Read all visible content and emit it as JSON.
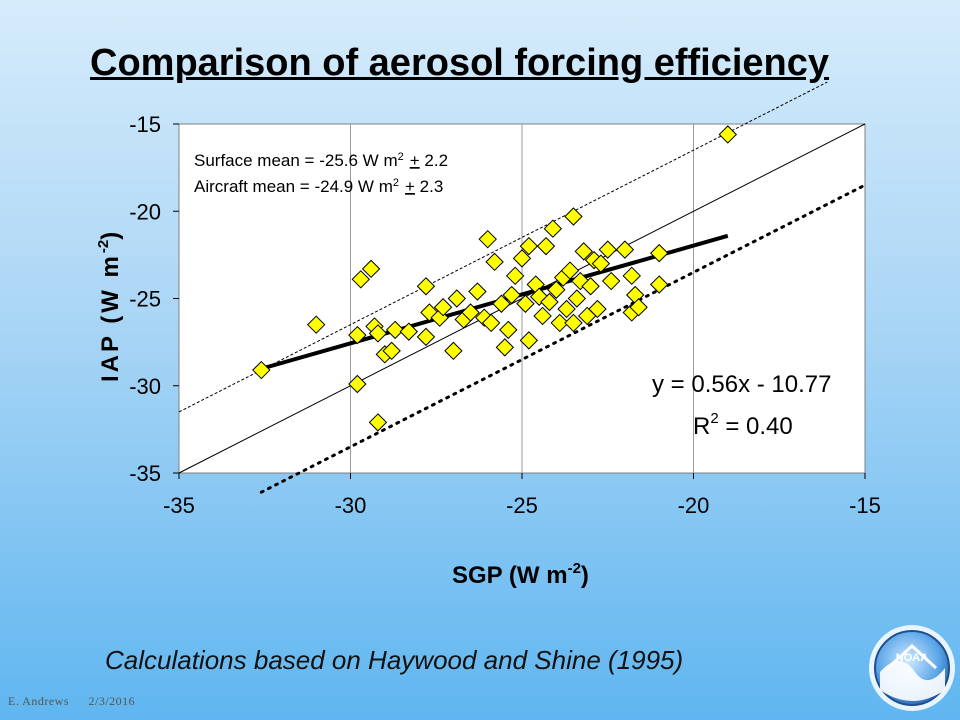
{
  "slide": {
    "title": "Comparison of aerosol forcing efficiency",
    "caption": "Calculations based on Haywood and Shine (1995)",
    "footer_author": "E. Andrews",
    "footer_date": "2/3/2016",
    "logo_text": "NOAA"
  },
  "chart_data": {
    "type": "scatter",
    "xlabel": "SGP (W m",
    "xlabel_sup": "-2",
    "xlabel_end": ")",
    "ylabel": "IAP (W m",
    "ylabel_sup": "-2",
    "ylabel_end": ")",
    "xlim": [
      -35,
      -15
    ],
    "ylim": [
      -35,
      -15
    ],
    "xticks": [
      -35,
      -30,
      -25,
      -20,
      -15
    ],
    "yticks": [
      -35,
      -30,
      -25,
      -20,
      -15
    ],
    "grid": "vertical",
    "marker": "diamond",
    "marker_color": "#ffff00",
    "annotations": {
      "surface_mean": {
        "pre": "Surface mean = -25.6 W m",
        "sup": "2",
        "pm": "+",
        "post": " 2.2"
      },
      "aircraft_mean": {
        "pre": "Aircraft mean = -24.9 W m",
        "sup": "2",
        "pm": "+",
        "post": " 2.3"
      },
      "equation": "y = 0.56x - 10.77",
      "r2_label": "R",
      "r2_sup": "2",
      "r2_value": " = 0.40"
    },
    "fit_line": {
      "slope": 0.56,
      "intercept": -10.77,
      "x_range": [
        -32.6,
        -19
      ]
    },
    "one_to_one_line": {
      "x_range": [
        -35,
        -15
      ]
    },
    "upper_bound_line": {
      "offset": 3.5,
      "x_range": [
        -35,
        -16.1
      ]
    },
    "lower_bound_line": {
      "offset": -3.5,
      "x_range": [
        -32.6,
        -15
      ]
    },
    "points": [
      [
        -32.6,
        -29.1
      ],
      [
        -31,
        -26.5
      ],
      [
        -29.8,
        -27.1
      ],
      [
        -29.8,
        -29.9
      ],
      [
        -29.7,
        -23.9
      ],
      [
        -29.4,
        -23.3
      ],
      [
        -29.3,
        -26.6
      ],
      [
        -29.2,
        -32.1
      ],
      [
        -29.2,
        -27.0
      ],
      [
        -29.0,
        -28.2
      ],
      [
        -28.8,
        -28.0
      ],
      [
        -28.7,
        -26.8
      ],
      [
        -28.3,
        -26.9
      ],
      [
        -27.8,
        -27.2
      ],
      [
        -27.8,
        -24.3
      ],
      [
        -27.7,
        -25.8
      ],
      [
        -27.4,
        -26.1
      ],
      [
        -27.3,
        -25.5
      ],
      [
        -27.0,
        -28.0
      ],
      [
        -26.9,
        -25.0
      ],
      [
        -26.7,
        -26.2
      ],
      [
        -26.5,
        -25.8
      ],
      [
        -26.3,
        -24.6
      ],
      [
        -26.1,
        -26.1
      ],
      [
        -26.0,
        -21.6
      ],
      [
        -25.9,
        -26.4
      ],
      [
        -25.8,
        -22.9
      ],
      [
        -25.6,
        -25.3
      ],
      [
        -25.5,
        -27.8
      ],
      [
        -25.4,
        -26.8
      ],
      [
        -25.3,
        -24.8
      ],
      [
        -25.2,
        -23.7
      ],
      [
        -25.0,
        -22.7
      ],
      [
        -24.9,
        -25.3
      ],
      [
        -24.8,
        -22.0
      ],
      [
        -24.8,
        -27.4
      ],
      [
        -24.6,
        -24.2
      ],
      [
        -24.5,
        -24.9
      ],
      [
        -24.4,
        -26.0
      ],
      [
        -24.3,
        -22.0
      ],
      [
        -24.2,
        -25.2
      ],
      [
        -24.1,
        -21.0
      ],
      [
        -24.0,
        -24.5
      ],
      [
        -23.9,
        -26.4
      ],
      [
        -23.8,
        -23.8
      ],
      [
        -23.7,
        -25.6
      ],
      [
        -23.6,
        -23.4
      ],
      [
        -23.5,
        -20.3
      ],
      [
        -23.5,
        -26.4
      ],
      [
        -23.4,
        -25.0
      ],
      [
        -23.3,
        -24.0
      ],
      [
        -23.2,
        -22.3
      ],
      [
        -23.1,
        -26.0
      ],
      [
        -23.0,
        -24.3
      ],
      [
        -22.9,
        -22.8
      ],
      [
        -22.8,
        -25.6
      ],
      [
        -22.7,
        -23.0
      ],
      [
        -22.5,
        -22.2
      ],
      [
        -22.4,
        -24.0
      ],
      [
        -22.0,
        -22.2
      ],
      [
        -21.8,
        -23.7
      ],
      [
        -21.8,
        -25.8
      ],
      [
        -21.7,
        -24.8
      ],
      [
        -21.6,
        -25.5
      ],
      [
        -21.0,
        -22.4
      ],
      [
        -21.0,
        -24.2
      ],
      [
        -19.0,
        -15.6
      ]
    ]
  }
}
